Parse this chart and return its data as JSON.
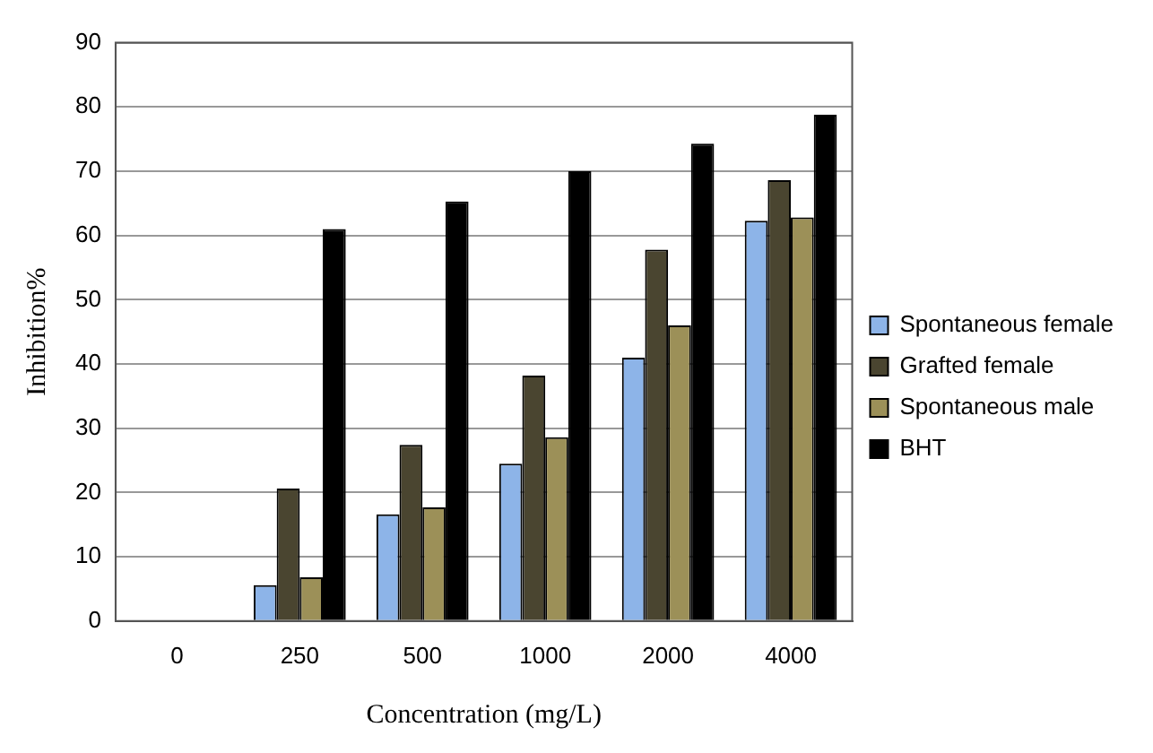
{
  "chart_data": {
    "type": "bar",
    "xlabel": "Concentration (mg/L)",
    "ylabel": "Inhibition%",
    "categories": [
      "0",
      "250",
      "500",
      "1000",
      "2000",
      "4000"
    ],
    "series": [
      {
        "name": "Spontaneous female",
        "color": "#8db4e8",
        "values": [
          0,
          5.6,
          16.6,
          24.5,
          41,
          62.3
        ]
      },
      {
        "name": "Grafted female",
        "color": "#4a4530",
        "values": [
          0,
          20.6,
          27.4,
          38.2,
          57.8,
          68.6
        ]
      },
      {
        "name": "Spontaneous male",
        "color": "#9c9058",
        "values": [
          0,
          6.8,
          17.7,
          28.6,
          46,
          62.8
        ]
      },
      {
        "name": "BHT",
        "color": "#000000",
        "values": [
          0,
          61,
          65.3,
          70,
          74.3,
          78.8
        ]
      }
    ],
    "ylim": [
      0,
      90
    ],
    "yticks": [
      0,
      10,
      20,
      30,
      40,
      50,
      60,
      70,
      80,
      90
    ],
    "grid": "y",
    "legend": "right"
  }
}
